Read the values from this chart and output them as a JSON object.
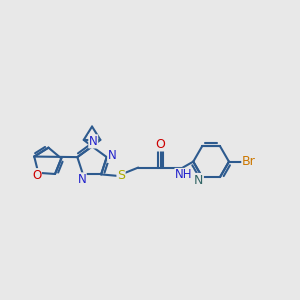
{
  "background_color": "#e8e8e8",
  "bond_color": "#2d5a8e",
  "bond_width": 1.5,
  "figsize": [
    3.0,
    3.0
  ],
  "dpi": 100,
  "xlim": [
    0,
    10
  ],
  "ylim": [
    2.5,
    8.0
  ],
  "furan_O_color": "#cc0000",
  "N_color": "#2222cc",
  "S_color": "#aaaa00",
  "O_color": "#cc0000",
  "Br_color": "#cc7700",
  "pyN_color": "#336666",
  "NH_color": "#2222cc"
}
